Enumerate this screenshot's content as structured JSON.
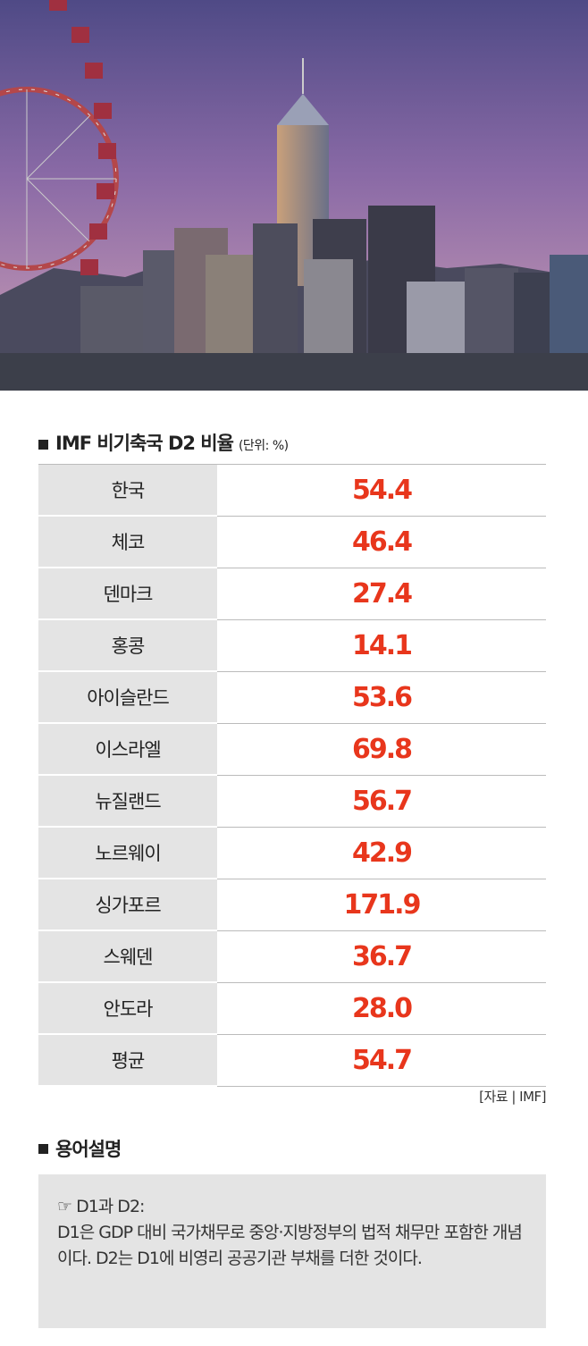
{
  "header": {
    "title": "IMF 비기축국 D2 비율",
    "unit": "(단위: %)"
  },
  "table": {
    "rows": [
      [
        "한국",
        "54.4"
      ],
      [
        "체코",
        "46.4"
      ],
      [
        "덴마크",
        "27.4"
      ],
      [
        "홍콩",
        "14.1"
      ],
      [
        "아이슬란드",
        "53.6"
      ],
      [
        "이스라엘",
        "69.8"
      ],
      [
        "뉴질랜드",
        "56.7"
      ],
      [
        "노르웨이",
        "42.9"
      ],
      [
        "싱가포르",
        "171.9"
      ],
      [
        "스웨덴",
        "36.7"
      ],
      [
        "안도라",
        "28.0"
      ],
      [
        "평균",
        "54.7"
      ]
    ]
  },
  "source": "[자료 | IMF]",
  "glossary": {
    "title": "용어설명",
    "term": "☞ D1과 D2:",
    "text": "D1은 GDP 대비 국가채무로 중앙·지방정부의 법적 채무만 포함한 개념이다. D2는 D1에 비영리 공공기관 부채를 더한 것이다."
  }
}
